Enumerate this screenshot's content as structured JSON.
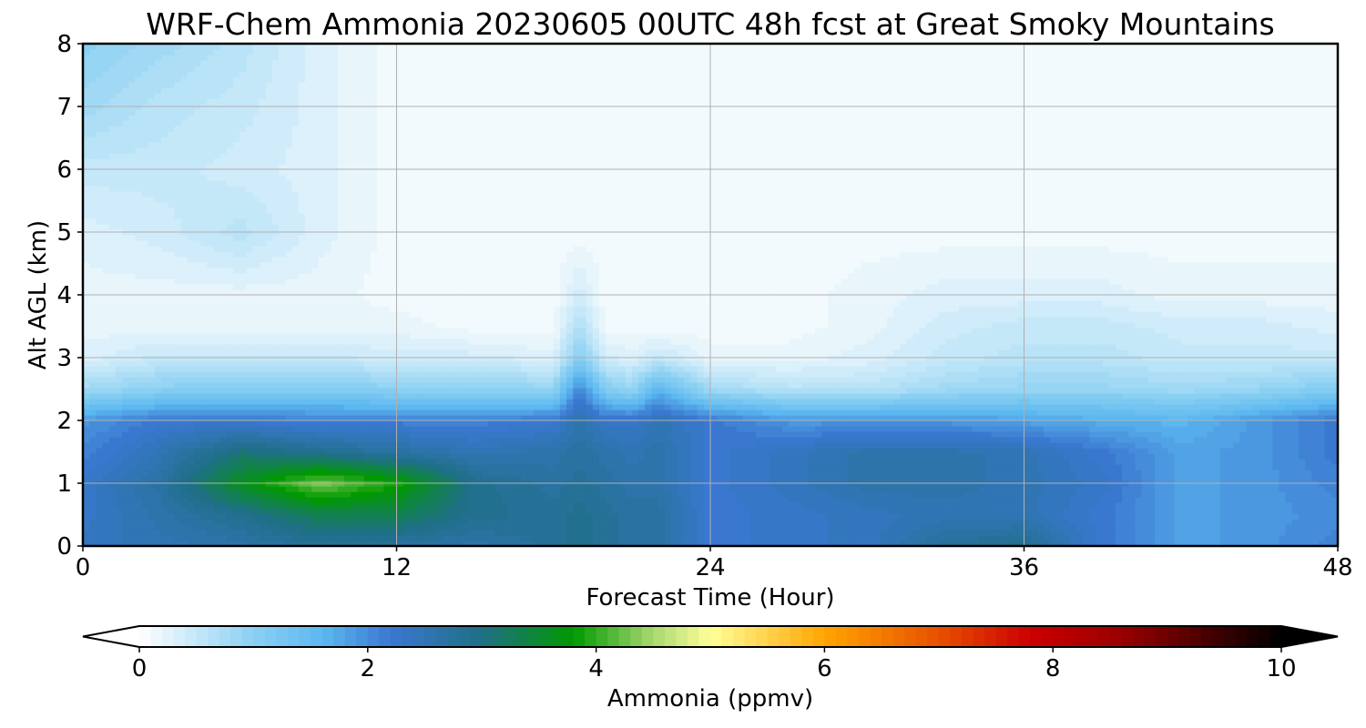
{
  "chart_data": {
    "type": "heatmap",
    "title": "WRF-Chem Ammonia  20230605 00UTC 48h fcst at Great Smoky Mountains",
    "xlabel": "Forecast Time (Hour)",
    "ylabel": "Alt AGL (km)",
    "xlim": [
      0,
      48
    ],
    "ylim": [
      0,
      8
    ],
    "xticks": [
      0,
      12,
      24,
      36,
      48
    ],
    "yticks": [
      0,
      1,
      2,
      3,
      4,
      5,
      6,
      7,
      8
    ],
    "grid": true,
    "x": [
      0,
      3,
      6,
      9,
      12,
      15,
      18,
      19,
      20,
      21,
      22,
      24,
      27,
      30,
      33,
      36,
      39,
      42,
      45,
      48
    ],
    "y": [
      0,
      0.5,
      1,
      1.5,
      2,
      2.5,
      3,
      3.5,
      4,
      5,
      6,
      7,
      8
    ],
    "z": [
      [
        2.4,
        2.5,
        2.6,
        2.8,
        2.7,
        2.6,
        2.8,
        2.9,
        2.8,
        2.7,
        2.7,
        2.2,
        2.3,
        2.4,
        2.8,
        2.9,
        2.2,
        1.8,
        1.9,
        2.1
      ],
      [
        2.3,
        2.6,
        2.9,
        3.3,
        3.3,
        2.9,
        2.8,
        2.9,
        2.8,
        2.7,
        2.7,
        2.2,
        2.3,
        2.4,
        2.5,
        2.5,
        2.2,
        1.8,
        1.9,
        2.0
      ],
      [
        2.3,
        2.7,
        3.6,
        4.3,
        3.9,
        2.9,
        2.7,
        2.8,
        2.7,
        2.6,
        2.6,
        2.2,
        2.4,
        2.6,
        2.6,
        2.5,
        2.3,
        1.8,
        1.9,
        2.1
      ],
      [
        2.1,
        2.5,
        3.1,
        2.9,
        2.7,
        2.5,
        2.6,
        2.7,
        2.6,
        2.5,
        2.6,
        2.2,
        2.4,
        2.6,
        2.6,
        2.5,
        2.2,
        1.8,
        1.9,
        2.2
      ],
      [
        1.9,
        2.2,
        2.2,
        2.1,
        2.1,
        2.1,
        2.2,
        2.6,
        2.3,
        2.3,
        2.5,
        2.2,
        1.9,
        1.9,
        1.9,
        1.8,
        1.7,
        1.6,
        1.9,
        2.2
      ],
      [
        0.8,
        1.0,
        1.1,
        1.1,
        1.0,
        1.0,
        0.9,
        2.1,
        1.1,
        0.9,
        1.6,
        0.8,
        0.6,
        0.6,
        0.8,
        0.9,
        0.9,
        0.8,
        0.9,
        1.1
      ],
      [
        0.3,
        0.5,
        0.5,
        0.5,
        0.4,
        0.4,
        0.3,
        1.1,
        0.4,
        0.3,
        0.5,
        0.2,
        0.2,
        0.3,
        0.5,
        0.6,
        0.6,
        0.5,
        0.5,
        0.5
      ],
      [
        0.2,
        0.2,
        0.2,
        0.2,
        0.2,
        0.1,
        0.1,
        0.7,
        0.1,
        0.1,
        0.1,
        0.1,
        0.1,
        0.2,
        0.4,
        0.5,
        0.5,
        0.4,
        0.4,
        0.3
      ],
      [
        0.2,
        0.2,
        0.2,
        0.2,
        0.1,
        0.1,
        0.1,
        0.4,
        0.1,
        0.1,
        0.1,
        0.1,
        0.1,
        0.2,
        0.3,
        0.3,
        0.3,
        0.2,
        0.2,
        0.2
      ],
      [
        0.3,
        0.4,
        0.6,
        0.3,
        0.1,
        0.1,
        0.1,
        0.1,
        0.1,
        0.1,
        0.1,
        0.1,
        0.1,
        0.1,
        0.1,
        0.1,
        0.1,
        0.1,
        0.1,
        0.1
      ],
      [
        0.5,
        0.5,
        0.4,
        0.3,
        0.1,
        0.1,
        0.1,
        0.1,
        0.1,
        0.1,
        0.1,
        0.1,
        0.1,
        0.1,
        0.1,
        0.1,
        0.1,
        0.1,
        0.1,
        0.1
      ],
      [
        0.8,
        0.6,
        0.5,
        0.3,
        0.1,
        0.1,
        0.1,
        0.1,
        0.1,
        0.1,
        0.1,
        0.1,
        0.1,
        0.1,
        0.1,
        0.1,
        0.1,
        0.1,
        0.1,
        0.1
      ],
      [
        1.0,
        0.8,
        0.6,
        0.3,
        0.1,
        0.1,
        0.1,
        0.1,
        0.1,
        0.1,
        0.1,
        0.1,
        0.1,
        0.1,
        0.1,
        0.1,
        0.1,
        0.1,
        0.1,
        0.1
      ]
    ],
    "colorbar": {
      "label": "Ammonia  (ppmv)",
      "ticks": [
        0,
        2,
        4,
        6,
        8,
        10
      ],
      "vmin": 0,
      "vmax": 10,
      "extend": "both",
      "stops": [
        {
          "v": 0.0,
          "color": "#ffffff"
        },
        {
          "v": 1.0,
          "color": "#8ad0f2"
        },
        {
          "v": 1.6,
          "color": "#5cb8f0"
        },
        {
          "v": 2.2,
          "color": "#3a78d0"
        },
        {
          "v": 3.0,
          "color": "#1f6f86"
        },
        {
          "v": 3.8,
          "color": "#009900"
        },
        {
          "v": 4.5,
          "color": "#a8d870"
        },
        {
          "v": 5.0,
          "color": "#ffff99"
        },
        {
          "v": 6.0,
          "color": "#ffa500"
        },
        {
          "v": 7.0,
          "color": "#e85000"
        },
        {
          "v": 7.8,
          "color": "#cc0000"
        },
        {
          "v": 8.6,
          "color": "#990000"
        },
        {
          "v": 10.0,
          "color": "#000000"
        }
      ]
    }
  }
}
